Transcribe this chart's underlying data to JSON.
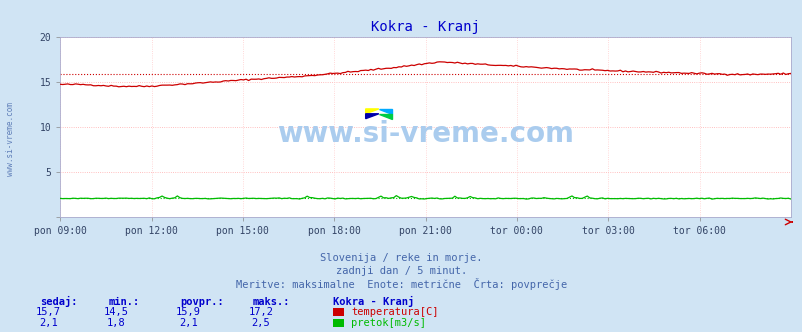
{
  "title": "Kokra - Kranj",
  "title_color": "#0000cc",
  "bg_color": "#d0e4f4",
  "plot_bg_color": "#ffffff",
  "grid_color_h": "#ffaaaa",
  "grid_color_v": "#ffcccc",
  "x_labels": [
    "pon 09:00",
    "pon 12:00",
    "pon 15:00",
    "pon 18:00",
    "pon 21:00",
    "tor 00:00",
    "tor 03:00",
    "tor 06:00"
  ],
  "x_ticks_norm": [
    0.0,
    0.125,
    0.25,
    0.375,
    0.5,
    0.625,
    0.75,
    0.875
  ],
  "y_min": 0,
  "y_max": 20,
  "y_ticks": [
    0,
    5,
    10,
    15,
    20
  ],
  "temp_color": "#cc0000",
  "flow_color": "#00bb00",
  "watermark_text": "www.si-vreme.com",
  "watermark_color": "#aaccee",
  "subtitle1": "Slovenija / reke in morje.",
  "subtitle2": "zadnji dan / 5 minut.",
  "subtitle3": "Meritve: maksimalne  Enote: metrične  Črta: povprečje",
  "subtitle_color": "#4466aa",
  "legend_title": "Kokra - Kranj",
  "legend_title_color": "#0000cc",
  "legend_items": [
    {
      "label": "temperatura[C]",
      "color": "#cc0000"
    },
    {
      "label": "pretok[m3/s]",
      "color": "#00bb00"
    }
  ],
  "table_headers": [
    "sedaj:",
    "min.:",
    "povpr.:",
    "maks.:"
  ],
  "table_row1": [
    "15,7",
    "14,5",
    "15,9",
    "17,2"
  ],
  "table_row2": [
    "2,1",
    "1,8",
    "2,1",
    "2,5"
  ],
  "table_color": "#0000cc",
  "left_label": "www.si-vreme.com",
  "left_label_color": "#4466aa",
  "temp_avg_line": 15.9,
  "flow_avg_line": 2.1,
  "n_points": 288,
  "logo_colors": [
    "#ffff00",
    "#00aaff",
    "#0000aa",
    "#00cc44"
  ]
}
